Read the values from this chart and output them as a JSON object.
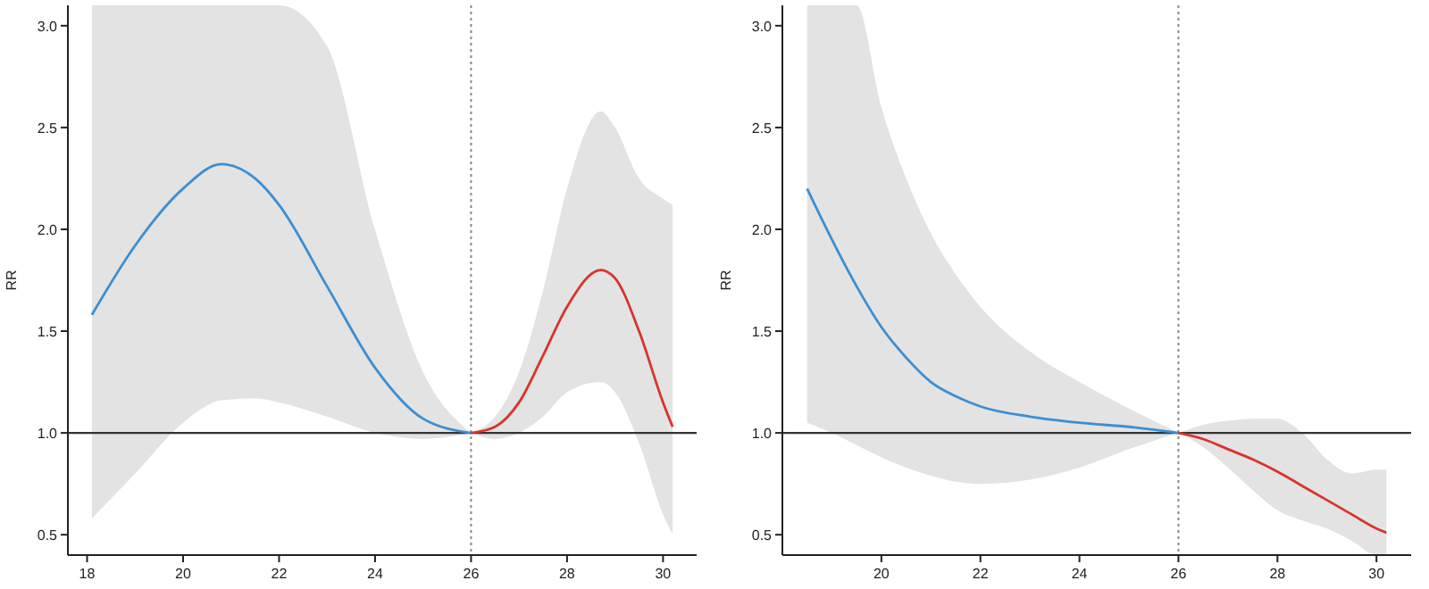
{
  "chart_data": [
    {
      "type": "line",
      "ylabel": "RR",
      "xlim": [
        17.6,
        30.7
      ],
      "ylim": [
        0.4,
        3.1
      ],
      "xticks": [
        18,
        20,
        22,
        24,
        26,
        28,
        30
      ],
      "yticks": [
        {
          "value": 0.5,
          "label": "0.5"
        },
        {
          "value": 1,
          "label": "1.0"
        },
        {
          "value": 1.5,
          "label": "1.5"
        },
        {
          "value": 2,
          "label": "2.0"
        },
        {
          "value": 2.5,
          "label": "2.5"
        },
        {
          "value": 3,
          "label": "3.0"
        }
      ],
      "grid": false,
      "marker": "none",
      "line_style": "solid",
      "ref_lines": [
        {
          "axis": "y",
          "value": 1,
          "color": "#333333",
          "line_style": "solid"
        },
        {
          "axis": "x",
          "value": 26,
          "color": "#888888",
          "line_style": "dotted"
        }
      ],
      "series": [
        {
          "color": "#3a8fd4",
          "x": [
            18.1,
            19,
            20,
            20.8,
            21.5,
            22,
            23,
            24,
            25,
            26
          ],
          "values": [
            1.58,
            1.92,
            2.2,
            2.32,
            2.25,
            2.12,
            1.72,
            1.32,
            1.07,
            1.0
          ],
          "lower": [
            0.58,
            0.8,
            1.05,
            1.16,
            1.17,
            1.15,
            1.08,
            1.0,
            0.97,
            1.0
          ],
          "upper": [
            3.1,
            3.1,
            3.1,
            3.1,
            3.1,
            3.1,
            2.9,
            2.0,
            1.3,
            1.0
          ]
        },
        {
          "color": "#d8342c",
          "x": [
            26,
            26.5,
            27,
            27.5,
            28,
            28.7,
            29,
            29.5,
            30,
            30.2
          ],
          "values": [
            1.0,
            1.03,
            1.15,
            1.38,
            1.62,
            1.8,
            1.76,
            1.5,
            1.15,
            1.03
          ],
          "lower": [
            1.0,
            0.97,
            1.0,
            1.08,
            1.2,
            1.25,
            1.2,
            0.95,
            0.6,
            0.5
          ],
          "upper": [
            1.0,
            1.08,
            1.3,
            1.7,
            2.2,
            2.58,
            2.5,
            2.25,
            2.15,
            2.12
          ]
        }
      ]
    },
    {
      "type": "line",
      "ylabel": "RR",
      "xlim": [
        18.0,
        30.7
      ],
      "ylim": [
        0.4,
        3.1
      ],
      "xticks": [
        20,
        22,
        24,
        26,
        28,
        30
      ],
      "yticks": [
        {
          "value": 0.5,
          "label": "0.5"
        },
        {
          "value": 1,
          "label": "1.0"
        },
        {
          "value": 1.5,
          "label": "1.5"
        },
        {
          "value": 2,
          "label": "2.0"
        },
        {
          "value": 2.5,
          "label": "2.5"
        },
        {
          "value": 3,
          "label": "3.0"
        }
      ],
      "grid": false,
      "marker": "none",
      "line_style": "solid",
      "ref_lines": [
        {
          "axis": "y",
          "value": 1,
          "color": "#333333",
          "line_style": "solid"
        },
        {
          "axis": "x",
          "value": 26,
          "color": "#888888",
          "line_style": "dotted"
        }
      ],
      "series": [
        {
          "color": "#3a8fd4",
          "x": [
            18.5,
            19,
            19.5,
            20,
            20.5,
            21,
            21.5,
            22,
            23,
            24,
            25,
            26
          ],
          "values": [
            2.2,
            1.95,
            1.72,
            1.52,
            1.37,
            1.25,
            1.18,
            1.13,
            1.08,
            1.05,
            1.03,
            1.0
          ],
          "lower": [
            1.05,
            1.0,
            0.94,
            0.88,
            0.83,
            0.79,
            0.76,
            0.75,
            0.77,
            0.83,
            0.92,
            1.0
          ],
          "upper": [
            3.1,
            3.1,
            3.1,
            2.6,
            2.25,
            1.98,
            1.78,
            1.62,
            1.4,
            1.25,
            1.12,
            1.0
          ]
        },
        {
          "color": "#d8342c",
          "x": [
            26,
            26.5,
            27,
            27.5,
            28,
            28.5,
            29,
            29.5,
            30,
            30.2
          ],
          "values": [
            1.0,
            0.97,
            0.92,
            0.87,
            0.81,
            0.74,
            0.67,
            0.6,
            0.53,
            0.51
          ],
          "lower": [
            1.0,
            0.93,
            0.83,
            0.72,
            0.62,
            0.57,
            0.53,
            0.47,
            0.4,
            0.4
          ],
          "upper": [
            1.0,
            1.04,
            1.06,
            1.07,
            1.07,
            1.0,
            0.87,
            0.8,
            0.82,
            0.82
          ]
        }
      ]
    }
  ]
}
